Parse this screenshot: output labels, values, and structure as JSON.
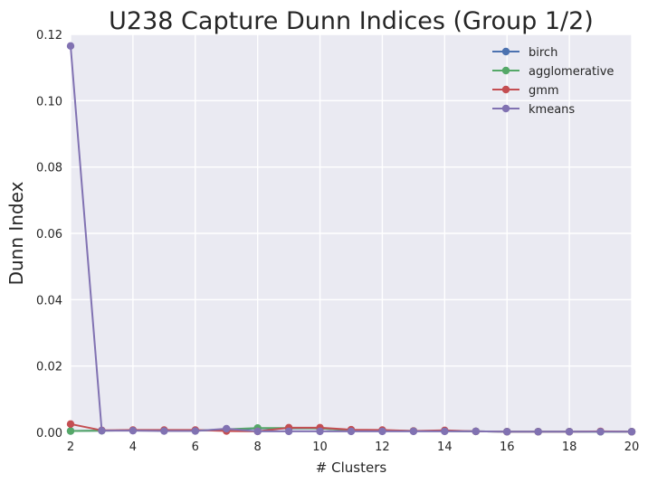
{
  "chart_data": {
    "type": "line",
    "title": "U238 Capture Dunn Indices (Group 1/2)",
    "xlabel": "# Clusters",
    "ylabel": "Dunn Index",
    "xlim": [
      2,
      20
    ],
    "ylim": [
      0,
      0.12
    ],
    "xticks": [
      2,
      4,
      6,
      8,
      10,
      12,
      14,
      16,
      18,
      20
    ],
    "yticks": [
      0,
      0.02,
      0.04,
      0.06,
      0.08,
      0.1,
      0.12
    ],
    "ytick_labels": [
      "0.00",
      "0.02",
      "0.04",
      "0.06",
      "0.08",
      "0.10",
      "0.12"
    ],
    "grid": true,
    "legend_position": "top-right",
    "x": [
      2,
      3,
      4,
      5,
      6,
      7,
      8,
      9,
      10,
      11,
      12,
      13,
      14,
      15,
      16,
      17,
      18,
      19,
      20
    ],
    "series": [
      {
        "name": "birch",
        "color": "#4c72b0",
        "values": [
          0.0004,
          0.0005,
          0.0006,
          0.0005,
          0.0005,
          0.0008,
          0.0012,
          0.0012,
          0.0012,
          0.0006,
          0.0005,
          0.0004,
          0.0004,
          0.0003,
          0.0002,
          0.0002,
          0.0002,
          0.0002,
          0.0002
        ]
      },
      {
        "name": "agglomerative",
        "color": "#55a868",
        "values": [
          0.0004,
          0.0005,
          0.0006,
          0.0005,
          0.0005,
          0.0009,
          0.0013,
          0.0013,
          0.0012,
          0.0006,
          0.0005,
          0.0004,
          0.0004,
          0.0003,
          0.0002,
          0.0002,
          0.0002,
          0.0002,
          0.0002
        ]
      },
      {
        "name": "gmm",
        "color": "#c44e52",
        "values": [
          0.0025,
          0.0006,
          0.0007,
          0.0007,
          0.0007,
          0.0004,
          0.0003,
          0.0014,
          0.0014,
          0.0008,
          0.0007,
          0.0004,
          0.0006,
          0.0003,
          0.0002,
          0.0002,
          0.0002,
          0.0003,
          0.0002
        ]
      },
      {
        "name": "kmeans",
        "color": "#8172b2",
        "values": [
          0.1165,
          0.0005,
          0.0005,
          0.0004,
          0.0004,
          0.0011,
          0.0003,
          0.0003,
          0.0003,
          0.0003,
          0.0003,
          0.0003,
          0.0003,
          0.0003,
          0.0002,
          0.0002,
          0.0002,
          0.0002,
          0.0002
        ]
      }
    ]
  }
}
